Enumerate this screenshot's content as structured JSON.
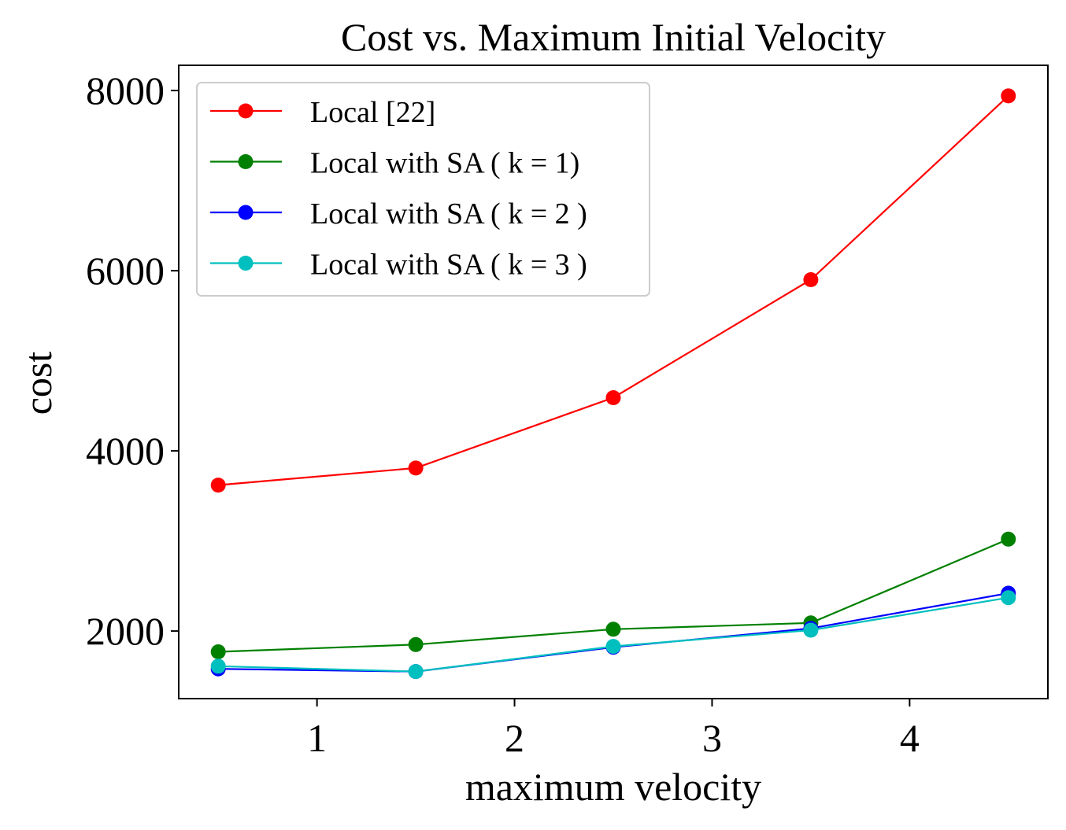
{
  "chart_data": {
    "type": "line",
    "title": "Cost vs. Maximum Initial Velocity",
    "xlabel": "maximum velocity",
    "ylabel": "cost",
    "x": [
      0.5,
      1.5,
      2.5,
      3.5,
      4.5
    ],
    "xlim": [
      0.3,
      4.7
    ],
    "ylim": [
      1250,
      8280
    ],
    "xticks": [
      1,
      2,
      3,
      4
    ],
    "xtick_labels": [
      "1",
      "2",
      "3",
      "4"
    ],
    "yticks": [
      2000,
      4000,
      6000,
      8000
    ],
    "ytick_labels": [
      "2000",
      "4000",
      "6000",
      "8000"
    ],
    "grid": false,
    "legend_position": "upper-left",
    "series": [
      {
        "name": "Local [22]",
        "color": "#ff0000",
        "values": [
          3620,
          3810,
          4590,
          5900,
          7940
        ]
      },
      {
        "name": "Local with SA ( k = 1)",
        "color": "#008000",
        "values": [
          1770,
          1850,
          2020,
          2090,
          3020
        ]
      },
      {
        "name": "Local with SA ( k = 2 )",
        "color": "#0000ff",
        "values": [
          1580,
          1550,
          1820,
          2030,
          2420
        ]
      },
      {
        "name": "Local with SA ( k = 3 )",
        "color": "#00bfbf",
        "values": [
          1610,
          1550,
          1830,
          2010,
          2370
        ]
      }
    ]
  }
}
